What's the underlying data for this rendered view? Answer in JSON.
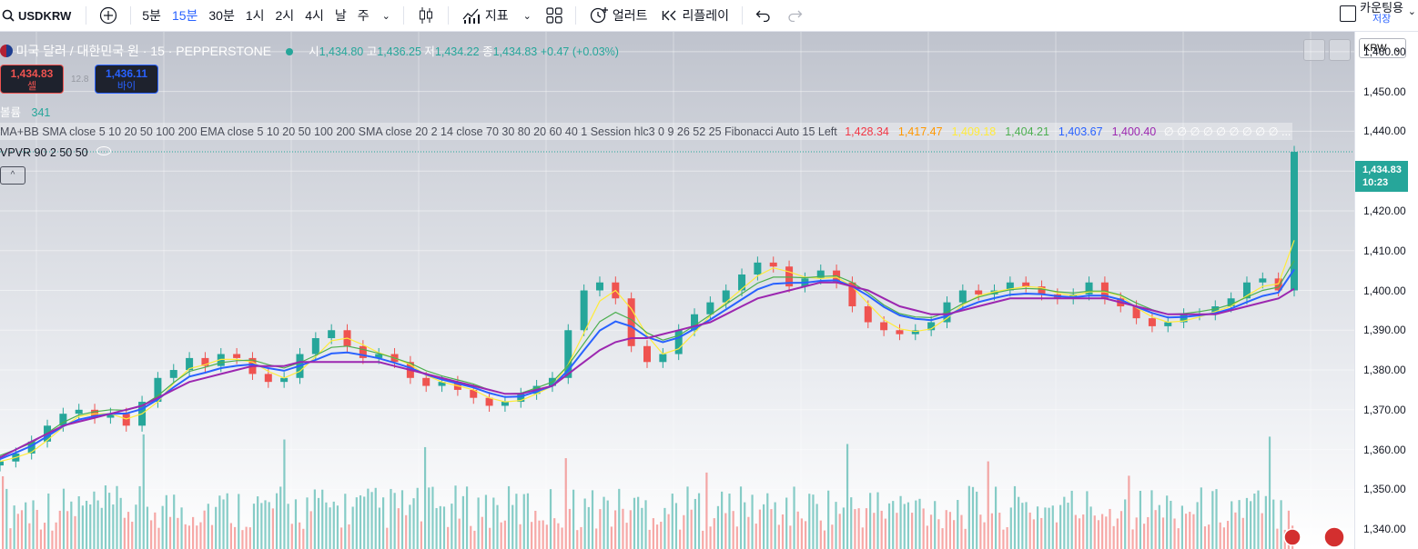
{
  "toolbar": {
    "symbol": "USDKRW",
    "intervals": [
      "5분",
      "15분",
      "30분",
      "1시",
      "2시",
      "4시",
      "날",
      "주"
    ],
    "active_interval": "15분",
    "indicators_label": "지표",
    "alert_label": "얼러트",
    "replay_label": "리플레이",
    "layout_label": "카운팅용",
    "save_label": "저장"
  },
  "legend": {
    "title": "미국 달러 / 대한민국 원 · 15 · PEPPERSTONE",
    "o_label": "시",
    "o_value": "1,434.80",
    "h_label": "고",
    "h_value": "1,436.25",
    "l_label": "저",
    "l_value": "1,434.22",
    "c_label": "종",
    "c_value": "1,434.83",
    "change": "+0.47 (+0.03%)"
  },
  "trade": {
    "sell_price": "1,434.83",
    "sell_label": "셀",
    "buy_price": "1,436.11",
    "buy_label": "바이",
    "spread": "12.8"
  },
  "indicators": {
    "volume_name": "볼륨",
    "volume_value": "341",
    "ma_text": "MA+BB SMA close 5 10 20 50 100 200 EMA close 5 10 20 50 100 200 SMA close 20 2 14 close 70 30 80 20 60 40 1 Session hlc3 0 9 26 52 25 Fibonacci Auto 15 Left",
    "ma_values": [
      {
        "v": "1,428.34",
        "color": "#f23645"
      },
      {
        "v": "1,417.47",
        "color": "#ff9800"
      },
      {
        "v": "1,409.18",
        "color": "#ffeb3b"
      },
      {
        "v": "1,404.21",
        "color": "#4caf50"
      },
      {
        "v": "1,403.67",
        "color": "#2962ff"
      },
      {
        "v": "1,400.40",
        "color": "#9c27b0"
      }
    ],
    "ma_tail": "∅ ∅ ∅ ∅ ∅ ∅ ∅ ∅ ∅ ...",
    "vpvr_text": "VPVR 90 2 50 50"
  },
  "price_axis": {
    "currency": "KRW",
    "ticks": [
      "1,460.00",
      "1,450.00",
      "1,440.00",
      "1,430.00",
      "1,420.00",
      "1,410.00",
      "1,400.00",
      "1,390.00",
      "1,380.00",
      "1,370.00",
      "1,360.00",
      "1,350.00",
      "1,340.00"
    ],
    "current_price": "1,434.83",
    "countdown": "10:23"
  },
  "chart_data": {
    "type": "candlestick",
    "series": [
      {
        "name": "close",
        "values": [
          1357,
          1359,
          1362,
          1366,
          1369,
          1370,
          1368,
          1369,
          1366,
          1372,
          1378,
          1380,
          1383,
          1381,
          1384,
          1383,
          1379,
          1377,
          1378,
          1384,
          1388,
          1390,
          1386,
          1383,
          1384,
          1382,
          1378,
          1376,
          1377,
          1375,
          1373,
          1371,
          1372,
          1374,
          1376,
          1378,
          1390,
          1400,
          1402,
          1398,
          1386,
          1382,
          1384,
          1390,
          1394,
          1397,
          1400,
          1404,
          1407,
          1406,
          1401,
          1403,
          1405,
          1402,
          1396,
          1392,
          1390,
          1389,
          1390,
          1392,
          1397,
          1400,
          1399,
          1400,
          1402,
          1401,
          1399,
          1398,
          1399,
          1402,
          1398,
          1396,
          1393,
          1391,
          1392,
          1394,
          1394,
          1396,
          1398,
          1402,
          1403,
          1400,
          1434.83
        ]
      },
      {
        "name": "ma_slow",
        "values": [
          1358,
          1360,
          1362,
          1364,
          1366,
          1367,
          1368,
          1369,
          1370,
          1371,
          1373,
          1375,
          1377,
          1378,
          1379,
          1380,
          1381,
          1381,
          1381,
          1382,
          1382,
          1382,
          1382,
          1382,
          1382,
          1381,
          1380,
          1379,
          1378,
          1377,
          1376,
          1375,
          1374,
          1374,
          1375,
          1376,
          1379,
          1382,
          1385,
          1387,
          1388,
          1388,
          1389,
          1390,
          1391,
          1392,
          1394,
          1396,
          1398,
          1399,
          1400,
          1401,
          1402,
          1402,
          1401,
          1400,
          1398,
          1396,
          1395,
          1394,
          1394,
          1395,
          1396,
          1397,
          1398,
          1398,
          1398,
          1398,
          1398,
          1398,
          1398,
          1397,
          1396,
          1395,
          1394,
          1394,
          1394,
          1394,
          1395,
          1396,
          1397,
          1398,
          1400.4
        ]
      }
    ],
    "ylim": [
      1335,
      1465
    ]
  }
}
